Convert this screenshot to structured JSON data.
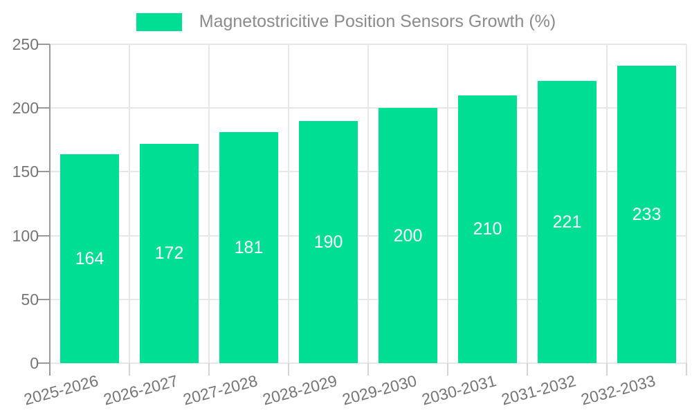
{
  "chart_data": {
    "type": "bar",
    "title": "",
    "xlabel": "",
    "ylabel": "",
    "categories": [
      "2025-2026",
      "2026-2027",
      "2027-2028",
      "2028-2029",
      "2029-2030",
      "2030-2031",
      "2031-2032",
      "2032-2033"
    ],
    "series": [
      {
        "name": "Magnetostricitive Position Sensors Growth (%)",
        "values": [
          164,
          172,
          181,
          190,
          200,
          210,
          221,
          233
        ]
      }
    ],
    "bar_value_labels": [
      "164",
      "172",
      "181",
      "190",
      "200",
      "210",
      "221",
      "233"
    ],
    "ylim": [
      0,
      250
    ],
    "yticks": [
      0,
      50,
      100,
      150,
      200,
      250
    ],
    "grid": true,
    "legend_position": "top",
    "bar_label_position": "inside-center"
  },
  "colors": {
    "bar": "#00DE94",
    "bar_value_text": "#FFFFFF",
    "axis": "#999999",
    "grid": "#E7E7E7",
    "category_tick": "#D4D4D4",
    "tick_label": "#757575",
    "legend_text": "#8B8B8B",
    "background": "#FFFFFF"
  }
}
